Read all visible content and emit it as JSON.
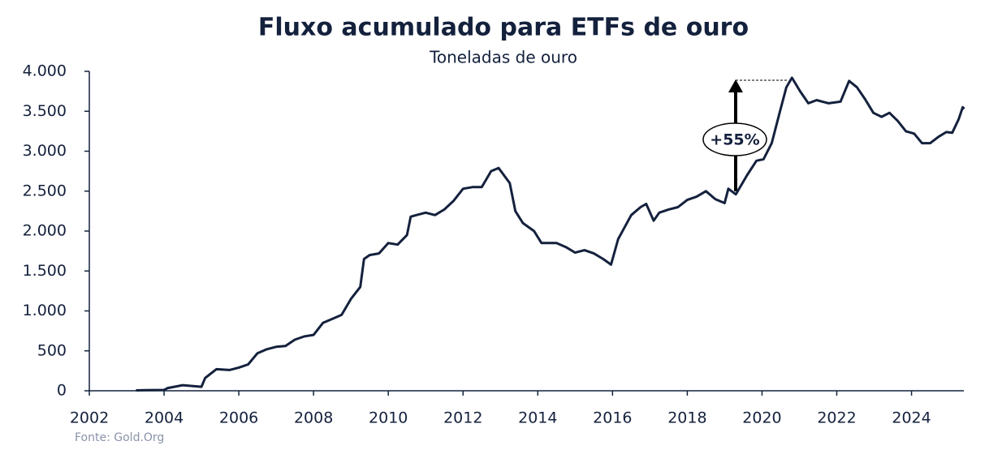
{
  "chart_data": {
    "type": "line",
    "title": "Fluxo acumulado para ETFs de ouro",
    "subtitle": "Toneladas de ouro",
    "source": "Fonte: Gold.Org",
    "annotation": "+55%",
    "color": "#14213d",
    "xlim": [
      2002,
      2025.4
    ],
    "xticks": [
      2002,
      2004,
      2006,
      2008,
      2010,
      2012,
      2014,
      2016,
      2018,
      2020,
      2022,
      2024
    ],
    "ylim": [
      0,
      4000
    ],
    "yticks": [
      0,
      500,
      {
        "value": 1000,
        "label": "1.000"
      },
      {
        "value": 1500,
        "label": "1.500"
      },
      {
        "value": 2000,
        "label": "2.000"
      },
      {
        "value": 2500,
        "label": "2.500"
      },
      {
        "value": 3000,
        "label": "3.000"
      },
      {
        "value": 3500,
        "label": "3.500"
      },
      {
        "value": 4000,
        "label": "4.000"
      }
    ],
    "series": [
      {
        "name": "Fluxo acumulado",
        "x": [
          2003.25,
          2003.5,
          2004,
          2004.1,
          2004.5,
          2004.75,
          2005,
          2005.1,
          2005.4,
          2005.75,
          2006,
          2006.25,
          2006.5,
          2006.75,
          2007,
          2007.25,
          2007.5,
          2007.75,
          2008,
          2008.25,
          2008.5,
          2008.75,
          2009,
          2009.25,
          2009.35,
          2009.5,
          2009.75,
          2010,
          2010.25,
          2010.5,
          2010.6,
          2010.75,
          2011,
          2011.25,
          2011.5,
          2011.75,
          2012,
          2012.25,
          2012.5,
          2012.75,
          2012.95,
          2013.25,
          2013.4,
          2013.6,
          2013.9,
          2014.1,
          2014.5,
          2014.75,
          2015,
          2015.25,
          2015.5,
          2015.75,
          2015.96,
          2016.15,
          2016.5,
          2016.75,
          2016.9,
          2017.1,
          2017.25,
          2017.5,
          2017.75,
          2018,
          2018.25,
          2018.5,
          2018.75,
          2019,
          2019.1,
          2019.3,
          2019.6,
          2019.85,
          2020.04,
          2020.26,
          2020.48,
          2020.65,
          2020.8,
          2021.02,
          2021.24,
          2021.46,
          2021.78,
          2022.1,
          2022.33,
          2022.54,
          2022.76,
          2022.98,
          2023.2,
          2023.41,
          2023.63,
          2023.85,
          2024.07,
          2024.28,
          2024.5,
          2024.72,
          2024.93,
          2025.09,
          2025.26,
          2025.37,
          2025.41
        ],
        "values": [
          5,
          8,
          10,
          35,
          70,
          60,
          50,
          160,
          270,
          260,
          290,
          330,
          470,
          520,
          550,
          560,
          640,
          680,
          700,
          850,
          900,
          950,
          1150,
          1300,
          1650,
          1700,
          1720,
          1850,
          1830,
          1950,
          2180,
          2200,
          2230,
          2200,
          2270,
          2380,
          2530,
          2550,
          2550,
          2750,
          2790,
          2600,
          2250,
          2100,
          2000,
          1850,
          1850,
          1800,
          1730,
          1760,
          1720,
          1650,
          1580,
          1900,
          2200,
          2300,
          2340,
          2130,
          2230,
          2270,
          2300,
          2390,
          2430,
          2500,
          2400,
          2350,
          2530,
          2460,
          2700,
          2880,
          2900,
          3100,
          3500,
          3800,
          3920,
          3750,
          3600,
          3640,
          3600,
          3620,
          3880,
          3800,
          3650,
          3480,
          3430,
          3480,
          3380,
          3250,
          3220,
          3100,
          3100,
          3180,
          3240,
          3230,
          3400,
          3550,
          3530
        ]
      }
    ]
  }
}
